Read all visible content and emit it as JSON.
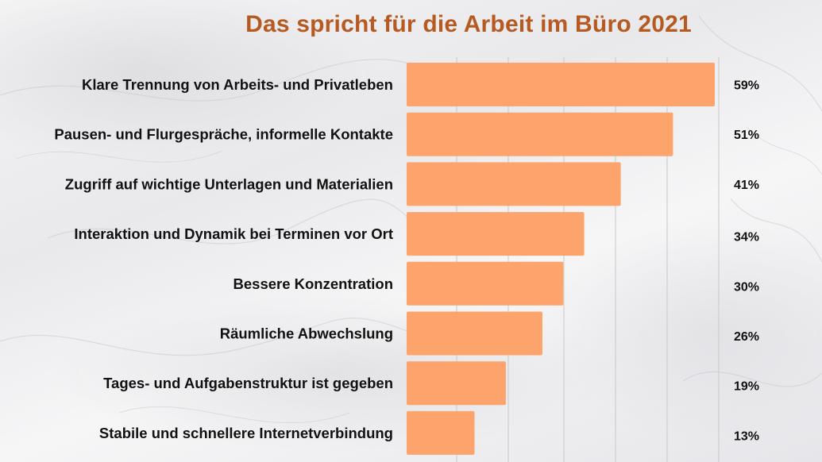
{
  "title": "Das spricht für die Arbeit im Büro 2021",
  "colors": {
    "title": "#b65a22",
    "bar": "#fca46b",
    "grid": "#c8c8c8"
  },
  "chart_data": {
    "type": "bar",
    "orientation": "horizontal",
    "title": "Das spricht für die Arbeit im Büro 2021",
    "categories": [
      "Klare Trennung von Arbeits- und Privatleben",
      "Pausen- und Flurgespräche, informelle Kontakte",
      "Zugriff auf wichtige Unterlagen und Materialien",
      "Interaktion und Dynamik bei Terminen vor Ort",
      "Bessere Konzentration",
      "Räumliche Abwechslung",
      "Tages- und Aufgabenstruktur ist gegeben",
      "Stabile und schnellere Internetverbindung"
    ],
    "values": [
      59,
      51,
      41,
      34,
      30,
      26,
      19,
      13
    ],
    "value_labels": [
      "59%",
      "51%",
      "41%",
      "34%",
      "30%",
      "26%",
      "19%",
      "13%"
    ],
    "unit": "%",
    "xlim": [
      0,
      60
    ],
    "grid": true,
    "legend": "none"
  }
}
